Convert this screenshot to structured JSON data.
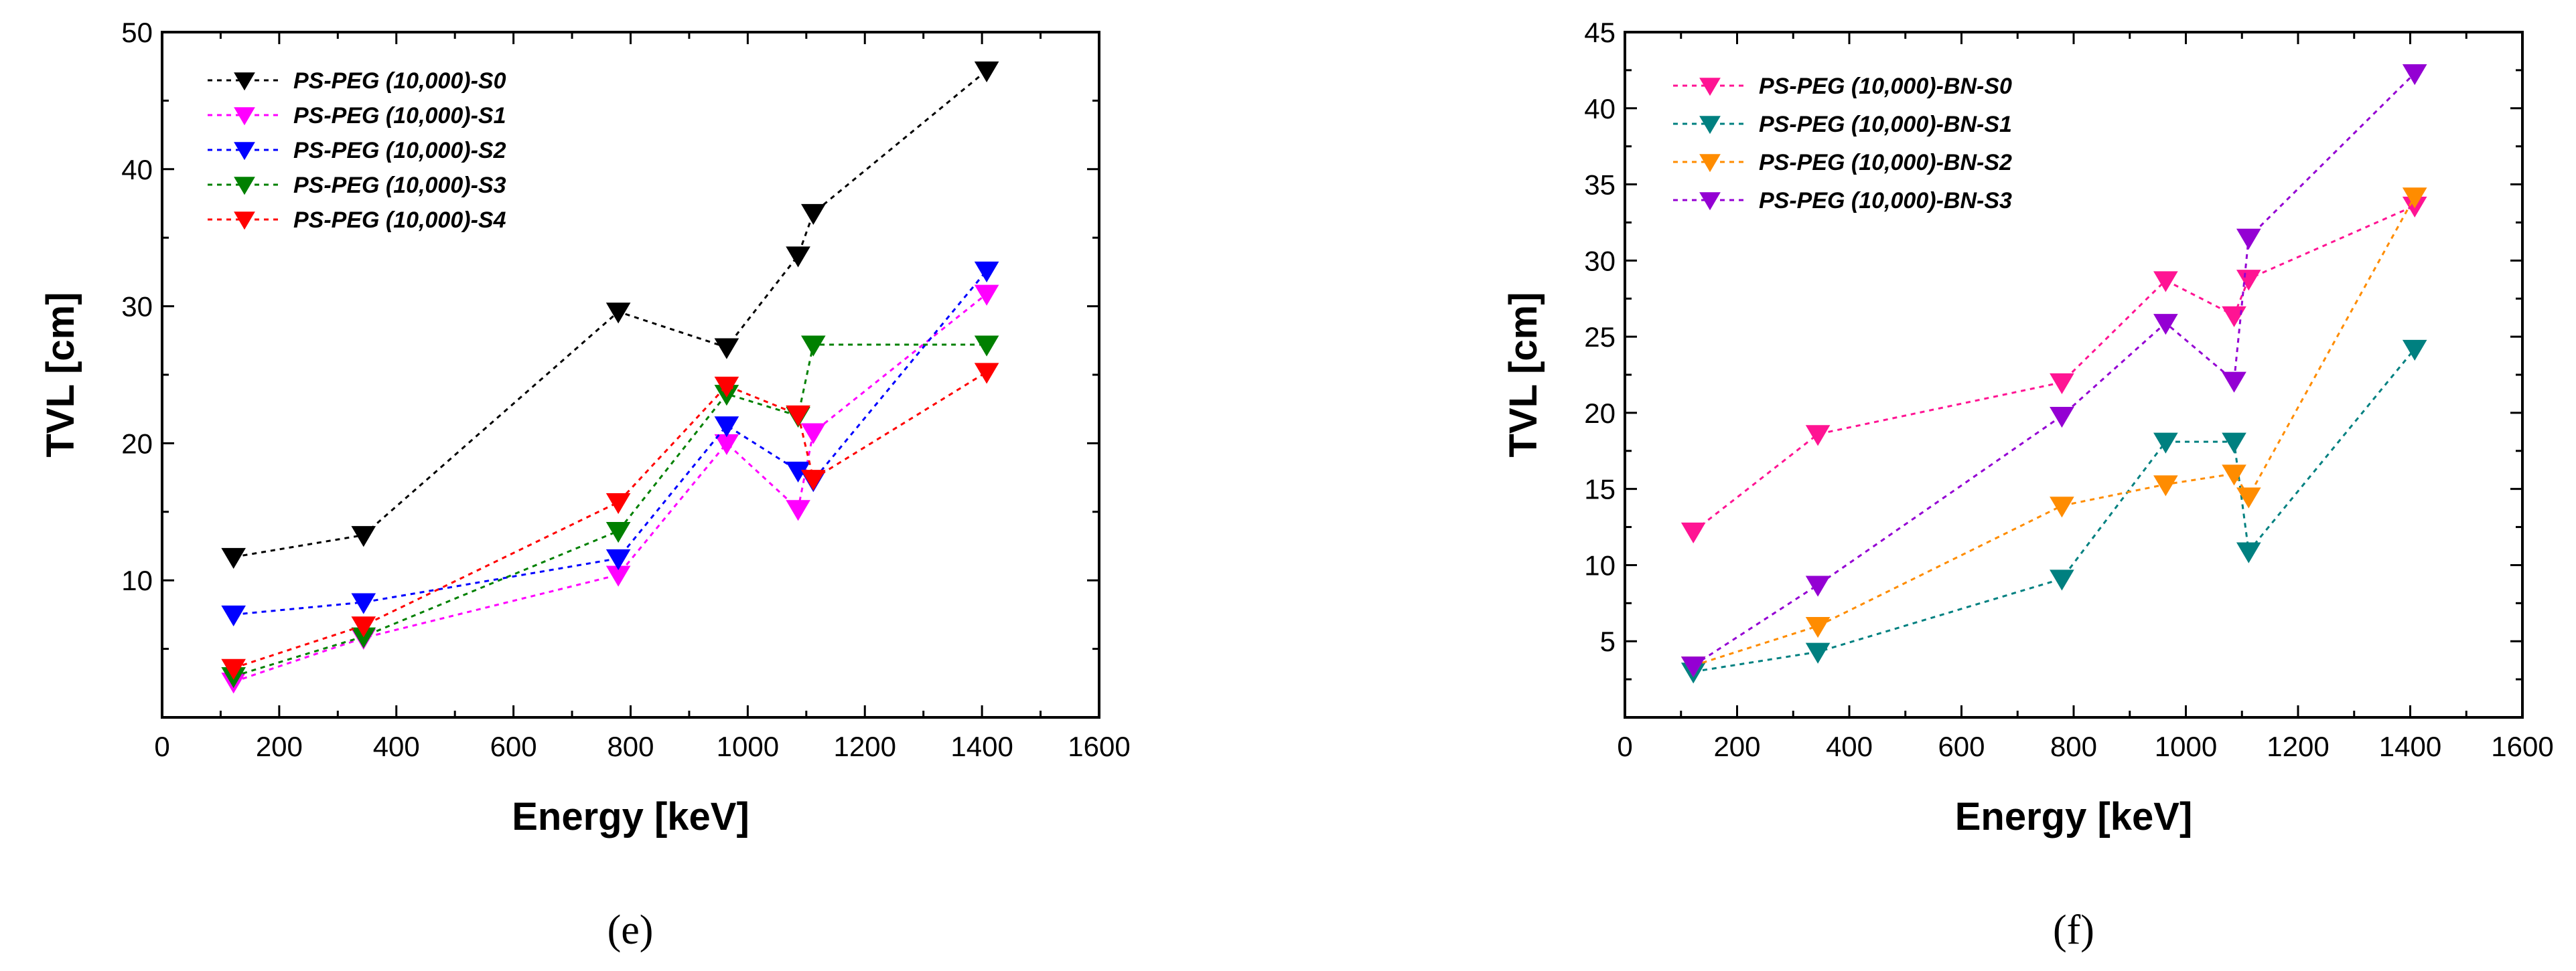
{
  "chart_data": [
    {
      "type": "line",
      "panel_label": "(e)",
      "xlabel": "Energy [keV]",
      "ylabel": "TVL [cm]",
      "xlim": [
        0,
        1600
      ],
      "ylim": [
        0,
        50
      ],
      "xticks": [
        0,
        200,
        400,
        600,
        800,
        1000,
        1200,
        1400,
        1600
      ],
      "yticks": [
        10,
        20,
        30,
        40,
        50
      ],
      "x": [
        122,
        344,
        779,
        964,
        1086,
        1112,
        1408
      ],
      "legend_position": "top-left",
      "grid": false,
      "series": [
        {
          "name": "PS-PEG (10,000)-S0",
          "color": "#000000",
          "values": [
            11.7,
            13.3,
            29.6,
            27.0,
            33.7,
            36.8,
            47.2
          ]
        },
        {
          "name": "PS-PEG (10,000)-S1",
          "color": "#ff00ff",
          "values": [
            2.6,
            5.8,
            10.4,
            20.0,
            15.2,
            20.8,
            30.9
          ]
        },
        {
          "name": "PS-PEG (10,000)-S2",
          "color": "#0000ff",
          "values": [
            7.5,
            8.4,
            11.6,
            21.3,
            18.0,
            17.3,
            32.6
          ]
        },
        {
          "name": "PS-PEG (10,000)-S3",
          "color": "#008000",
          "values": [
            3.0,
            5.9,
            13.6,
            23.6,
            22.0,
            27.2,
            27.2
          ]
        },
        {
          "name": "PS-PEG (10,000)-S4",
          "color": "#ff0000",
          "values": [
            3.6,
            6.7,
            15.7,
            24.2,
            22.1,
            17.4,
            25.2
          ]
        }
      ]
    },
    {
      "type": "line",
      "panel_label": "(f)",
      "xlabel": "Energy [keV]",
      "ylabel": "TVL [cm]",
      "xlim": [
        0,
        1600
      ],
      "ylim": [
        0,
        45
      ],
      "xticks": [
        0,
        200,
        400,
        600,
        800,
        1000,
        1200,
        1400,
        1600
      ],
      "yticks": [
        5,
        10,
        15,
        20,
        25,
        30,
        35,
        40,
        45
      ],
      "x": [
        122,
        344,
        779,
        964,
        1086,
        1112,
        1408
      ],
      "legend_position": "top-left",
      "grid": false,
      "series": [
        {
          "name": "PS-PEG (10,000)-BN-S0",
          "color": "#ff1493",
          "values": [
            12.2,
            18.6,
            22.0,
            28.7,
            26.4,
            28.8,
            33.6
          ]
        },
        {
          "name": "PS-PEG (10,000)-BN-S1",
          "color": "#008080",
          "values": [
            3.0,
            4.3,
            9.1,
            18.1,
            18.1,
            10.9,
            24.2
          ]
        },
        {
          "name": "PS-PEG (10,000)-BN-S2",
          "color": "#ff8c00",
          "values": [
            3.4,
            6.0,
            13.9,
            15.3,
            16.0,
            14.5,
            34.2
          ]
        },
        {
          "name": "PS-PEG (10,000)-BN-S3",
          "color": "#9400d3",
          "values": [
            3.4,
            8.7,
            19.8,
            25.9,
            22.1,
            31.5,
            42.3
          ]
        }
      ]
    }
  ]
}
